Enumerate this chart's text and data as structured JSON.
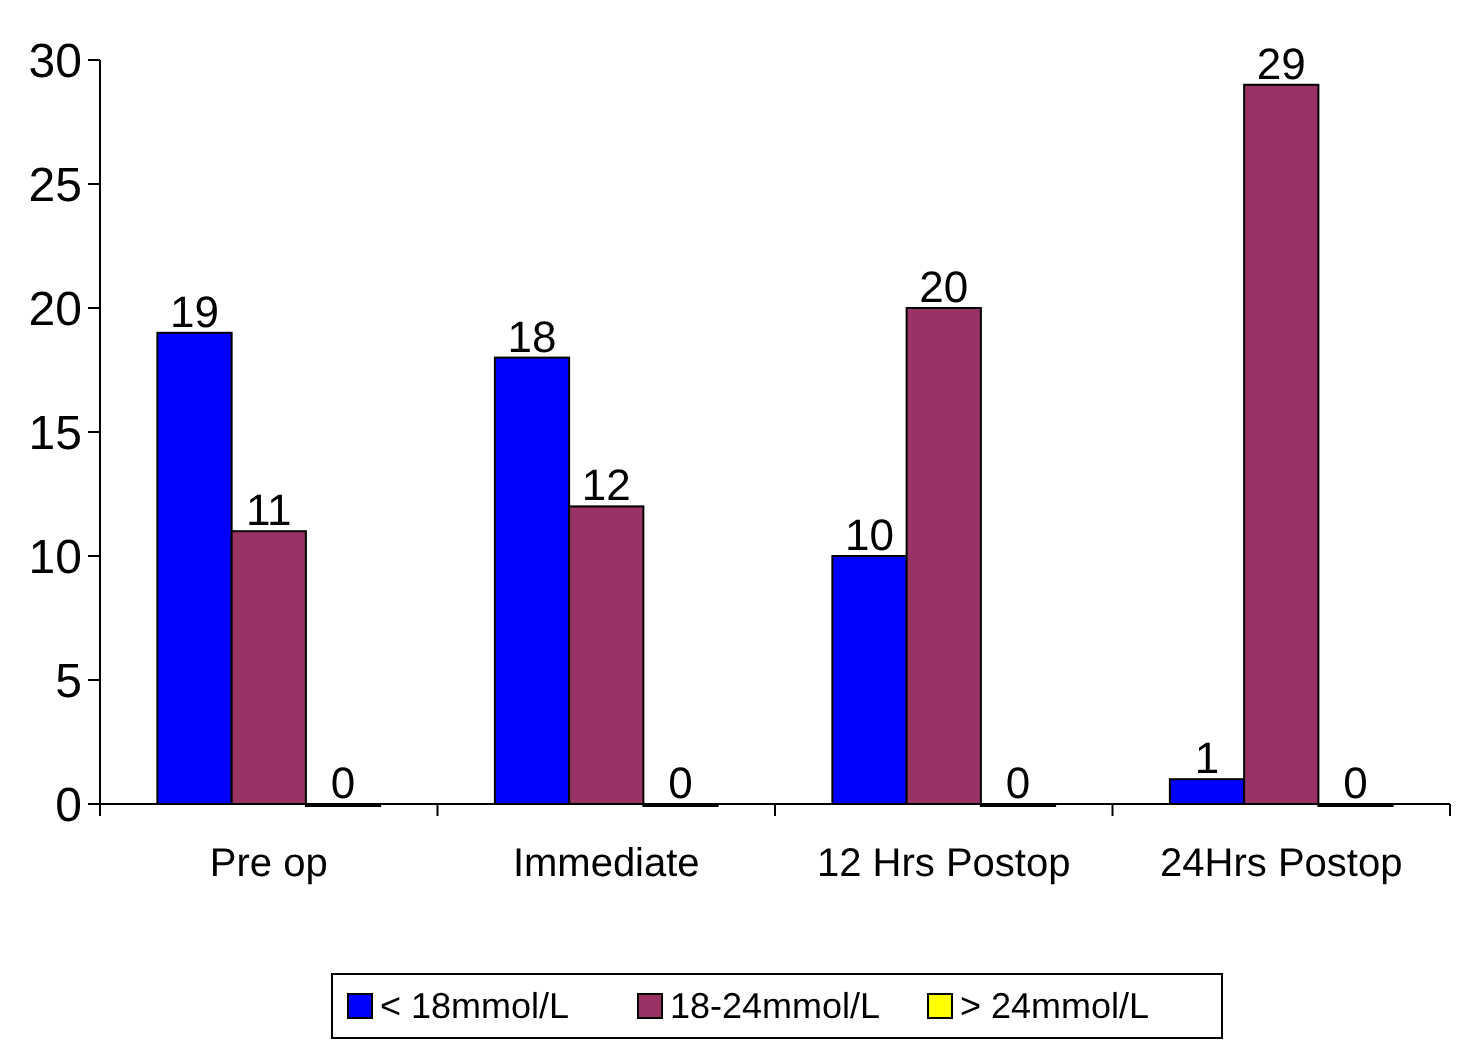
{
  "chart_data": {
    "type": "bar",
    "categories": [
      "Pre op",
      "Immediate",
      "12 Hrs Postop",
      "24Hrs Postop"
    ],
    "series": [
      {
        "name": "< 18mmol/L",
        "color": "#0000ff",
        "values": [
          19,
          18,
          10,
          1
        ]
      },
      {
        "name": "18-24mmol/L",
        "color": "#993366",
        "values": [
          11,
          12,
          20,
          29
        ]
      },
      {
        "name": "> 24mmol/L",
        "color": "#ffff00",
        "values": [
          0,
          0,
          0,
          0
        ]
      }
    ],
    "ylim": [
      0,
      30
    ],
    "yticks": [
      0,
      5,
      10,
      15,
      20,
      25,
      30
    ],
    "data_labels": true,
    "legend": "bottom",
    "grid": false
  }
}
